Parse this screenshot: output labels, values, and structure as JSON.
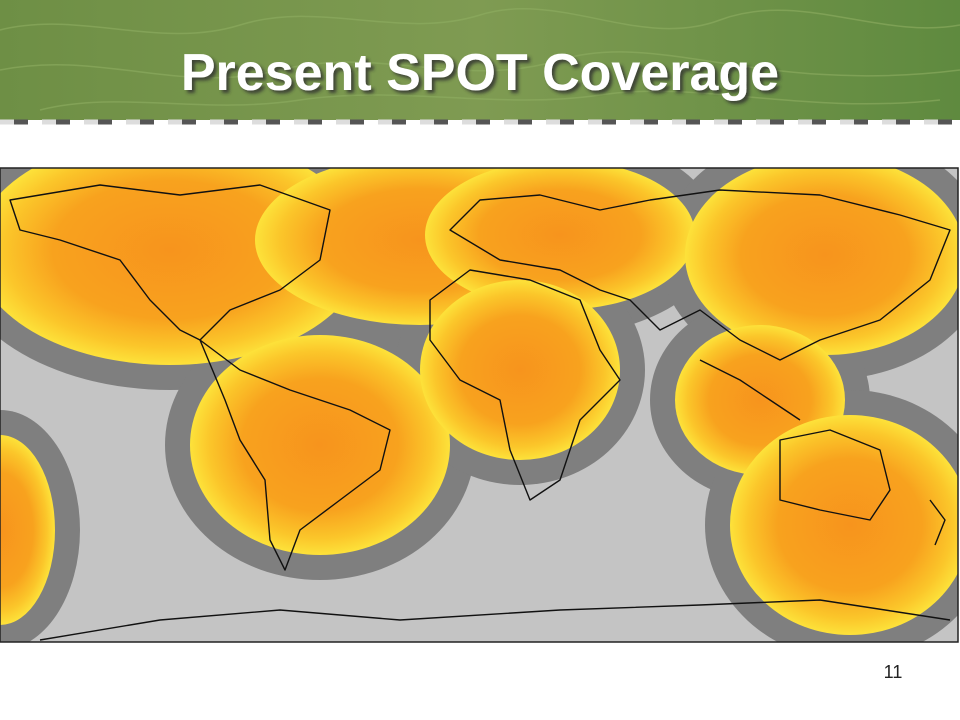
{
  "header": {
    "title": "Present SPOT Coverage"
  },
  "footer": {
    "page_number": "11"
  }
}
